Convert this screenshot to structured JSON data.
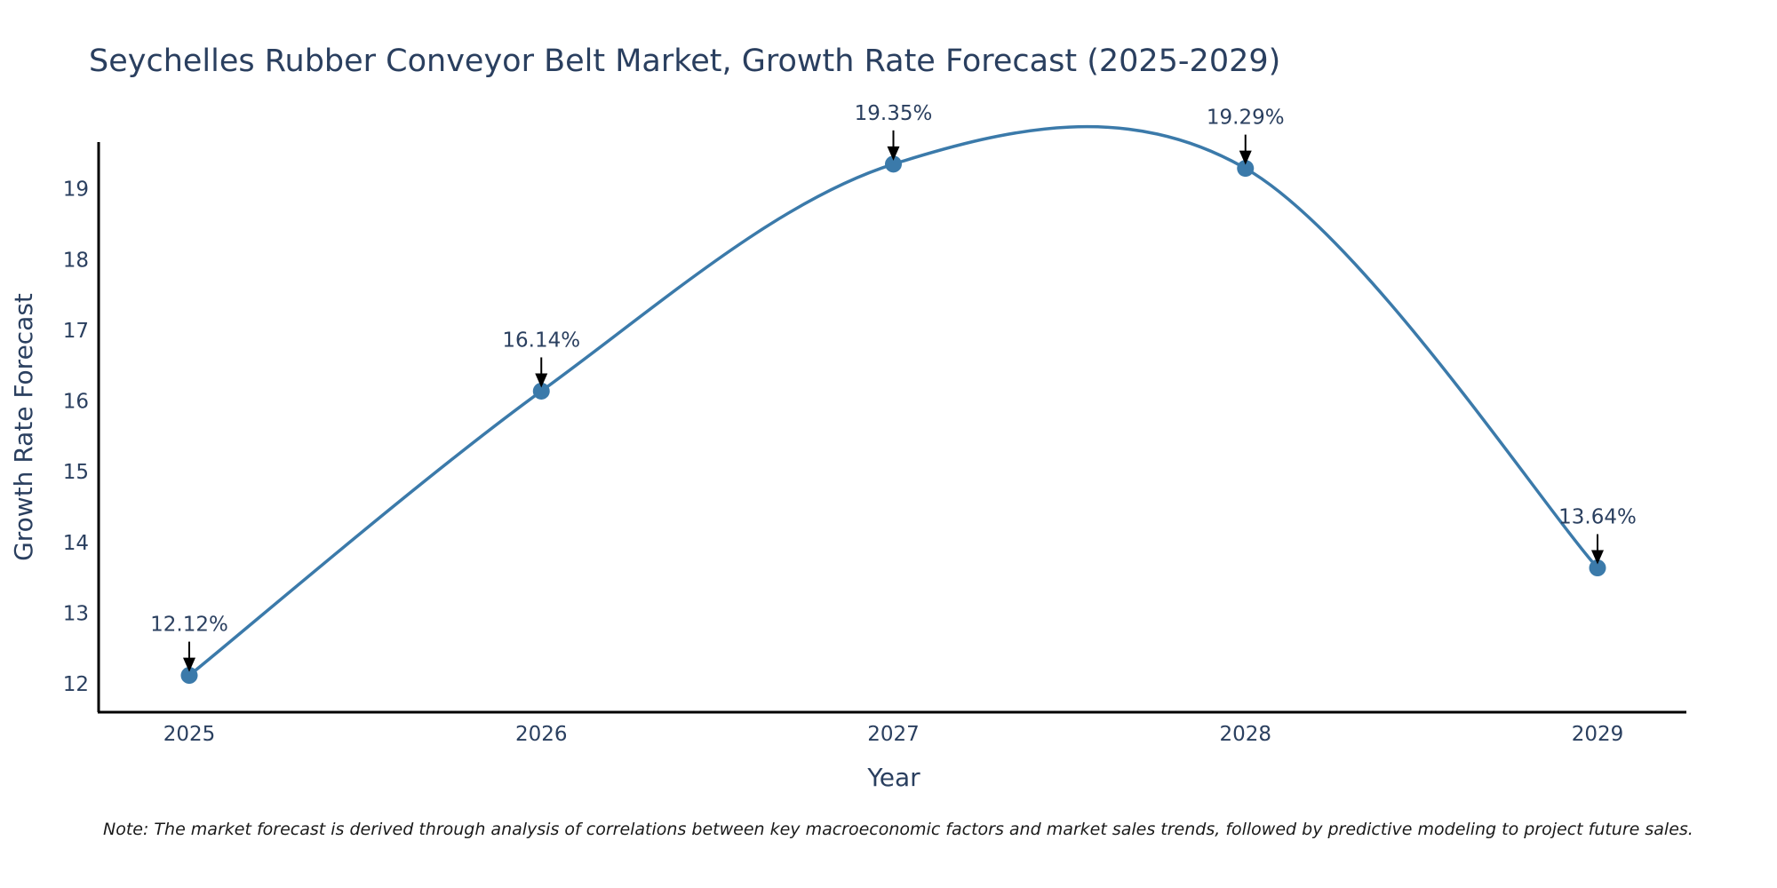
{
  "chart_data": {
    "type": "line",
    "title": "Seychelles Rubber Conveyor Belt Market, Growth Rate Forecast (2025-2029)",
    "xlabel": "Year",
    "ylabel": "Growth Rate Forecast",
    "x": [
      "2025",
      "2026",
      "2027",
      "2028",
      "2029"
    ],
    "series": [
      {
        "name": "Growth Rate Forecast",
        "values": [
          12.12,
          16.14,
          19.35,
          19.29,
          13.64
        ],
        "labels": [
          "12.12%",
          "16.14%",
          "19.35%",
          "19.29%",
          "13.64%"
        ],
        "color": "#3b7aaa"
      }
    ],
    "yticks": [
      "12",
      "13",
      "14",
      "15",
      "16",
      "17",
      "18",
      "19"
    ],
    "ylim": [
      11.6,
      19.85
    ],
    "grid": false,
    "note": "Note: The market forecast is derived through analysis of correlations between key macroeconomic factors and market sales trends, followed by predictive modeling to project future sales."
  },
  "colors": {
    "line": "#3b7aaa",
    "marker": "#3b7aaa",
    "axis": "#000000",
    "text": "#2a3f5f",
    "arrow": "#000000"
  }
}
